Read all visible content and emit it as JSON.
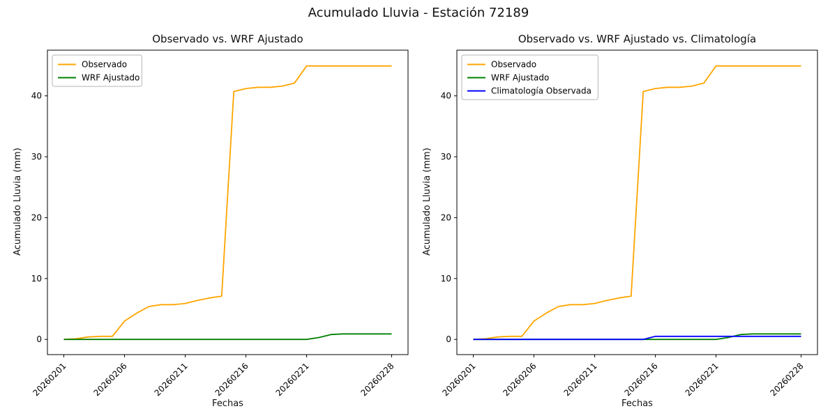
{
  "figure": {
    "title": "Acumulado Lluvia - Estación 72189"
  },
  "chart_data": [
    {
      "type": "line",
      "title": "Observado vs. WRF Ajustado",
      "xlabel": "Fechas",
      "ylabel": "Acumulado Lluvia (mm)",
      "grid": false,
      "legend_position": "upper left",
      "xlim": [
        -0.35,
        29.35
      ],
      "ylim": [
        -2.5,
        47.5
      ],
      "yticks": [
        0,
        10,
        20,
        30,
        40
      ],
      "xtick_positions": [
        1,
        6,
        11,
        16,
        21,
        28
      ],
      "xtick_labels": [
        "20260201",
        "20260206",
        "20260211",
        "20260216",
        "20260221",
        "20260228"
      ],
      "x": [
        1,
        2,
        3,
        4,
        5,
        6,
        7,
        8,
        9,
        10,
        11,
        12,
        13,
        14,
        15,
        16,
        17,
        18,
        19,
        20,
        21,
        22,
        23,
        24,
        25,
        26,
        27,
        28
      ],
      "series": [
        {
          "name": "Observado",
          "color": "#FFA500",
          "values": [
            0,
            0.1,
            0.4,
            0.5,
            0.5,
            3.0,
            4.3,
            5.4,
            5.7,
            5.7,
            5.9,
            6.4,
            6.8,
            7.1,
            40.7,
            41.2,
            41.4,
            41.4,
            41.6,
            42.1,
            44.9,
            44.9,
            44.9,
            44.9,
            44.9,
            44.9,
            44.9,
            44.9
          ]
        },
        {
          "name": "WRF Ajustado",
          "color": "#008000",
          "values": [
            0,
            0,
            0,
            0,
            0,
            0,
            0,
            0,
            0,
            0,
            0,
            0,
            0,
            0,
            0,
            0,
            0,
            0,
            0,
            0,
            0,
            0.3,
            0.8,
            0.9,
            0.9,
            0.9,
            0.9,
            0.9
          ]
        }
      ]
    },
    {
      "type": "line",
      "title": "Observado vs. WRF Ajustado vs. Climatología",
      "xlabel": "Fechas",
      "ylabel": "Acumulado Lluvia (mm)",
      "grid": false,
      "legend_position": "upper left",
      "xlim": [
        -0.35,
        29.35
      ],
      "ylim": [
        -2.5,
        47.5
      ],
      "yticks": [
        0,
        10,
        20,
        30,
        40
      ],
      "xtick_positions": [
        1,
        6,
        11,
        16,
        21,
        28
      ],
      "xtick_labels": [
        "20260201",
        "20260206",
        "20260211",
        "20260216",
        "20260221",
        "20260228"
      ],
      "x": [
        1,
        2,
        3,
        4,
        5,
        6,
        7,
        8,
        9,
        10,
        11,
        12,
        13,
        14,
        15,
        16,
        17,
        18,
        19,
        20,
        21,
        22,
        23,
        24,
        25,
        26,
        27,
        28
      ],
      "series": [
        {
          "name": "Observado",
          "color": "#FFA500",
          "values": [
            0,
            0.1,
            0.4,
            0.5,
            0.5,
            3.0,
            4.3,
            5.4,
            5.7,
            5.7,
            5.9,
            6.4,
            6.8,
            7.1,
            40.7,
            41.2,
            41.4,
            41.4,
            41.6,
            42.1,
            44.9,
            44.9,
            44.9,
            44.9,
            44.9,
            44.9,
            44.9,
            44.9
          ]
        },
        {
          "name": "WRF Ajustado",
          "color": "#008000",
          "values": [
            0,
            0,
            0,
            0,
            0,
            0,
            0,
            0,
            0,
            0,
            0,
            0,
            0,
            0,
            0,
            0,
            0,
            0,
            0,
            0,
            0,
            0.3,
            0.8,
            0.9,
            0.9,
            0.9,
            0.9,
            0.9
          ]
        },
        {
          "name": "Climatología Observada",
          "color": "#0000FF",
          "values": [
            0,
            0,
            0,
            0,
            0,
            0,
            0,
            0,
            0,
            0,
            0,
            0,
            0,
            0,
            0,
            0.5,
            0.5,
            0.5,
            0.5,
            0.5,
            0.5,
            0.5,
            0.5,
            0.5,
            0.5,
            0.5,
            0.5,
            0.5
          ]
        }
      ]
    }
  ]
}
